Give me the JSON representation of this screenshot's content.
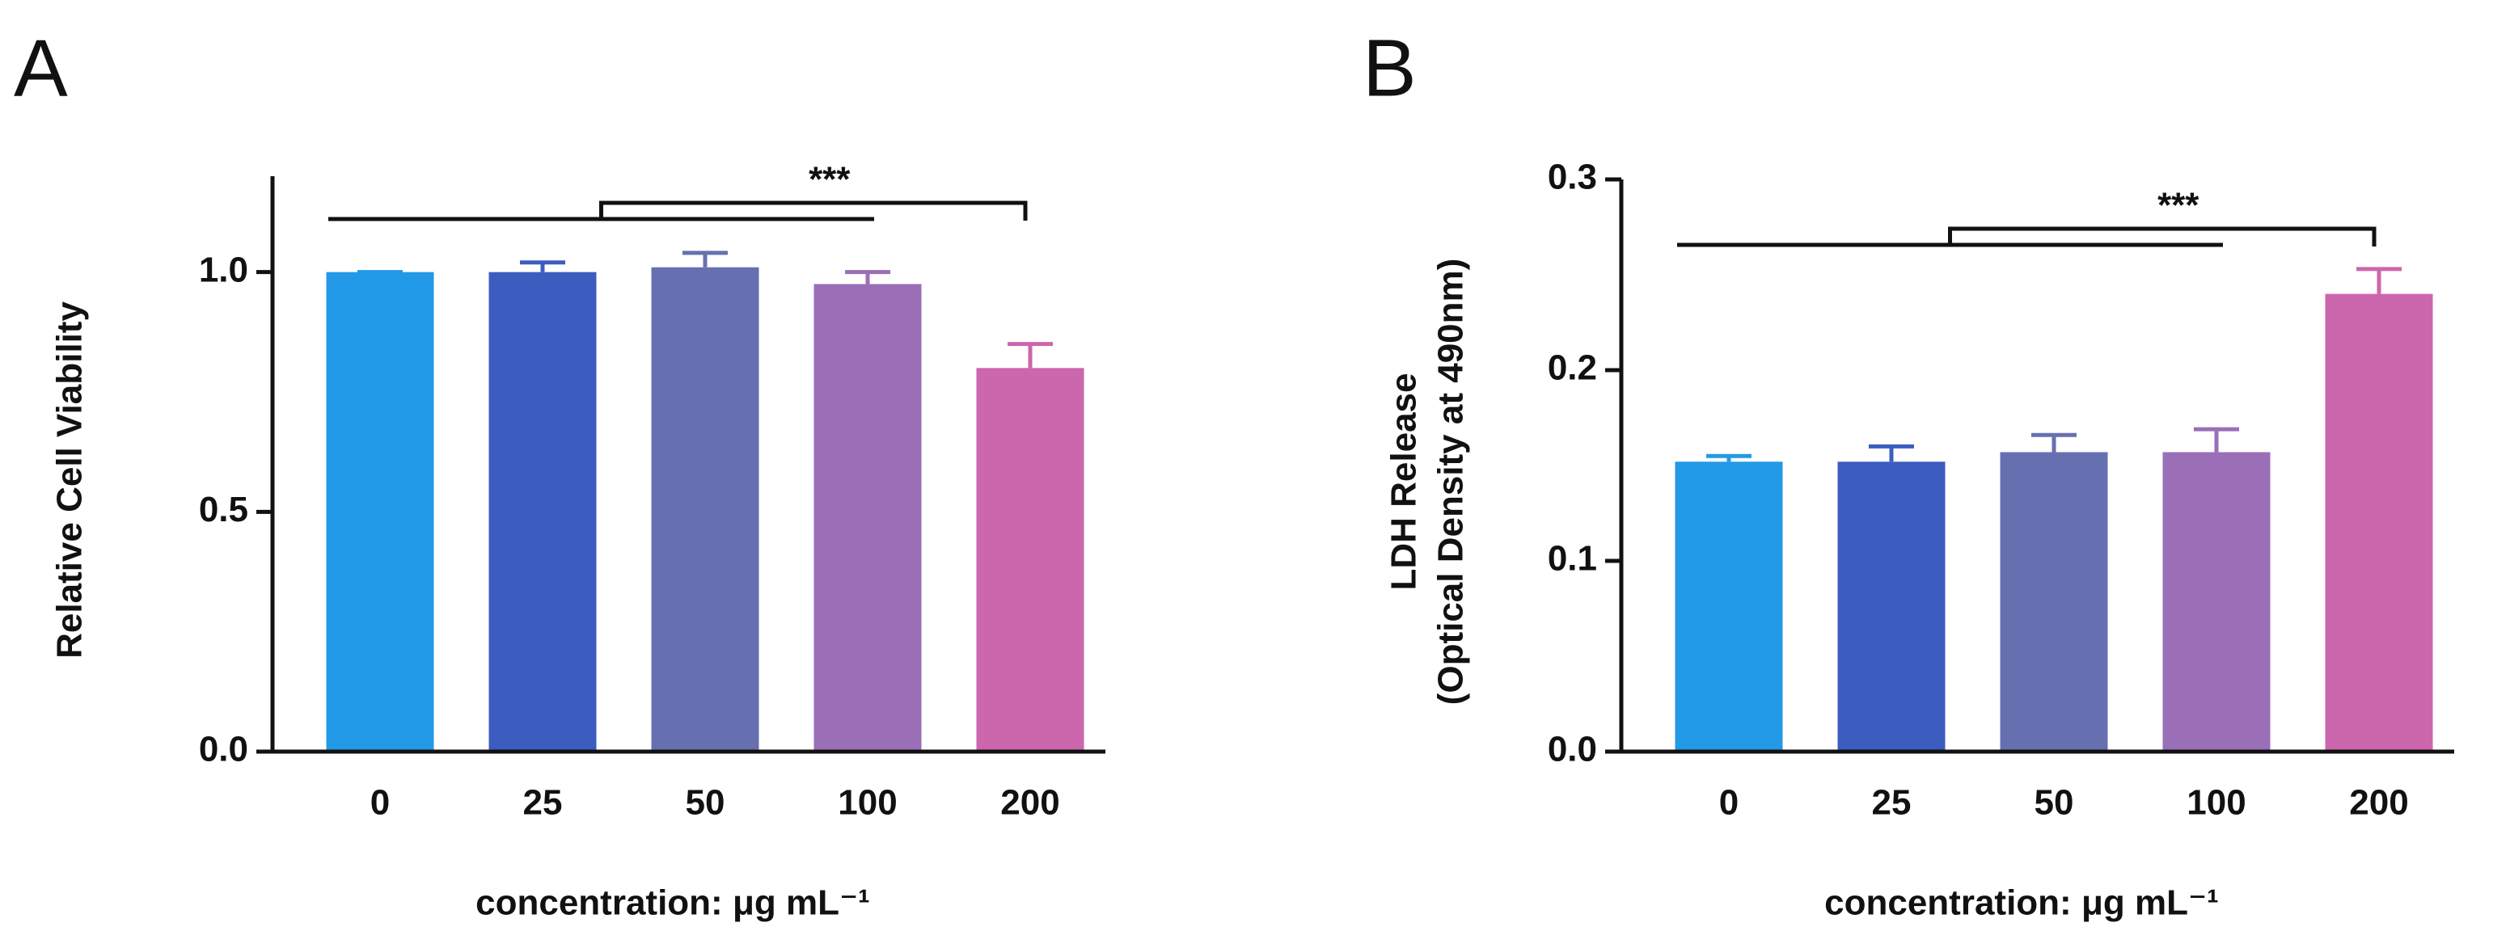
{
  "chart_data": [
    {
      "type": "bar",
      "panel": "A",
      "categories": [
        "0",
        "25",
        "50",
        "100",
        "200"
      ],
      "values": [
        1.0,
        1.0,
        1.01,
        0.975,
        0.8
      ],
      "errors": [
        0.0,
        0.02,
        0.03,
        0.025,
        0.05
      ],
      "colors": [
        "#2299e6",
        "#3d5cc0",
        "#6670b0",
        "#9a6fb8",
        "#cc66ad"
      ],
      "ylim": [
        0,
        1.2
      ],
      "yticks": [
        {
          "value": 0,
          "label": "0.0"
        },
        {
          "value": 0.5,
          "label": "0.5"
        },
        {
          "value": 1,
          "label": "1.0"
        }
      ],
      "ylabel": [
        "Relative Cell Viability"
      ],
      "xlabel": "concentration: μg mL⁻¹",
      "annotation": "***"
    },
    {
      "type": "bar",
      "panel": "B",
      "categories": [
        "0",
        "25",
        "50",
        "100",
        "200"
      ],
      "values": [
        0.152,
        0.152,
        0.157,
        0.157,
        0.24
      ],
      "errors": [
        0.003,
        0.008,
        0.009,
        0.012,
        0.013
      ],
      "colors": [
        "#2299e6",
        "#3d5cc0",
        "#6670b0",
        "#9a6fb8",
        "#cc66ad"
      ],
      "ylim": [
        0,
        0.3
      ],
      "yticks": [
        {
          "value": 0,
          "label": "0.0"
        },
        {
          "value": 0.1,
          "label": "0.1"
        },
        {
          "value": 0.2,
          "label": "0.2"
        },
        {
          "value": 0.3,
          "label": "0.3"
        }
      ],
      "ylabel": [
        "LDH Release",
        "(Optical Density at 490nm)"
      ],
      "xlabel": "concentration: μg mL⁻¹",
      "annotation": "***"
    }
  ]
}
